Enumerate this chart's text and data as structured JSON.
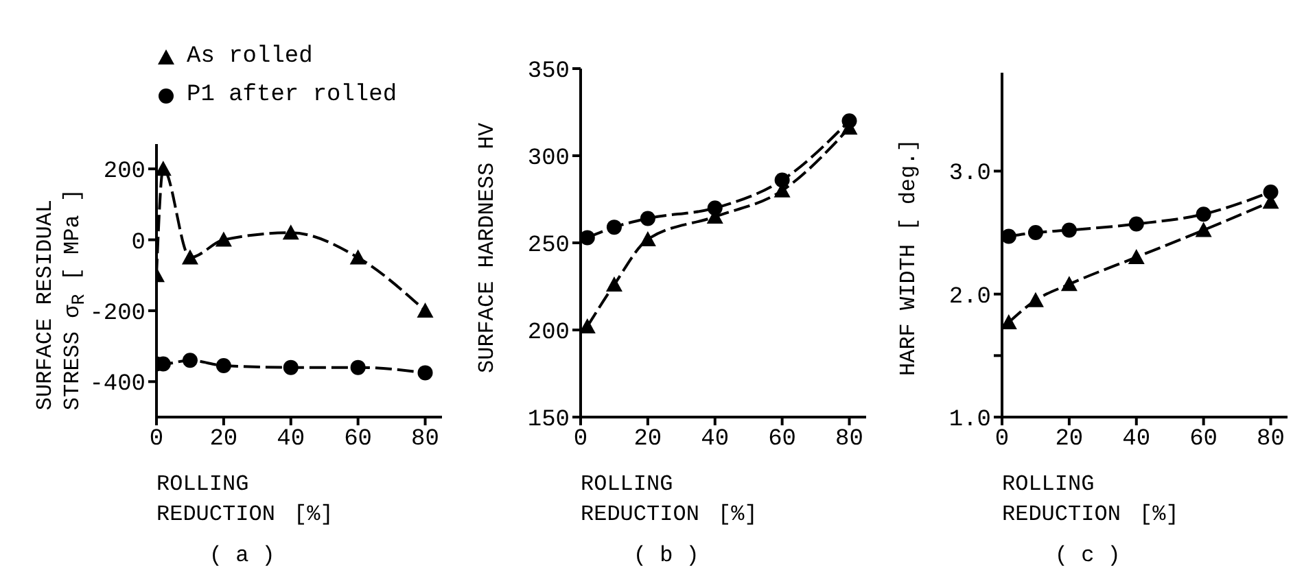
{
  "chart_data": [
    {
      "type": "line",
      "title": "( a )",
      "xlabel": "ROLLING REDUCTION [%]",
      "ylabel": "SURFACE RESIDUAL STRESS σ$_{R}$ [ MPa ]",
      "legend": "top",
      "line_style": "dashed",
      "xlim": [
        0,
        85
      ],
      "xticks": [
        0,
        20,
        40,
        60,
        80
      ],
      "ylim": [
        -500,
        270
      ],
      "yticks": [
        -400,
        -200,
        0,
        200
      ],
      "series": [
        {
          "name": "As rolled",
          "color": "#000000",
          "marker": "triangle",
          "x": [
            0,
            2,
            10,
            20,
            40,
            60,
            80
          ],
          "values": [
            -100,
            200,
            -50,
            0,
            20,
            -50,
            -200
          ]
        },
        {
          "name": "P1 after rolled",
          "color": "#000000",
          "marker": "circle",
          "x": [
            0,
            2,
            10,
            20,
            40,
            60,
            80
          ],
          "values": [
            -350,
            -350,
            -340,
            -355,
            -360,
            -360,
            -375
          ]
        }
      ]
    },
    {
      "type": "line",
      "title": "( b )",
      "xlabel": "ROLLING REDUCTION [%]",
      "ylabel": "SURFACE HARDNESS HV",
      "line_style": "dashed",
      "xlim": [
        0,
        85
      ],
      "xticks": [
        0,
        20,
        40,
        60,
        80
      ],
      "ylim": [
        150,
        350
      ],
      "yticks": [
        150,
        200,
        250,
        300,
        350
      ],
      "series": [
        {
          "color": "#000000",
          "marker": "triangle",
          "x": [
            2,
            10,
            20,
            40,
            60,
            80
          ],
          "values": [
            202,
            226,
            252,
            265,
            280,
            316
          ]
        },
        {
          "color": "#000000",
          "marker": "circle",
          "x": [
            2,
            10,
            20,
            40,
            60,
            80
          ],
          "values": [
            253,
            259,
            264,
            270,
            286,
            320
          ]
        }
      ]
    },
    {
      "type": "line",
      "title": "( c )",
      "xlabel": "ROLLING REDUCTION [%]",
      "ylabel": "HARF WIDTH [ deg.]",
      "line_style": "dashed",
      "xlim": [
        0,
        85
      ],
      "xticks": [
        0,
        20,
        40,
        60,
        80
      ],
      "ylim": [
        1.0,
        3.8
      ],
      "yticks": [
        {
          "value": 1.0,
          "label": "1.0"
        },
        {
          "value": 1.5,
          "label": null
        },
        {
          "value": 2.0,
          "label": "2.0"
        },
        {
          "value": 3.0,
          "label": "3.0"
        }
      ],
      "series": [
        {
          "color": "#000000",
          "marker": "triangle",
          "x": [
            2,
            10,
            20,
            40,
            60,
            80
          ],
          "values": [
            1.77,
            1.95,
            2.08,
            2.3,
            2.52,
            2.75
          ]
        },
        {
          "color": "#000000",
          "marker": "circle",
          "x": [
            2,
            10,
            20,
            40,
            60,
            80
          ],
          "values": [
            2.47,
            2.5,
            2.52,
            2.57,
            2.65,
            2.83
          ]
        }
      ]
    }
  ]
}
